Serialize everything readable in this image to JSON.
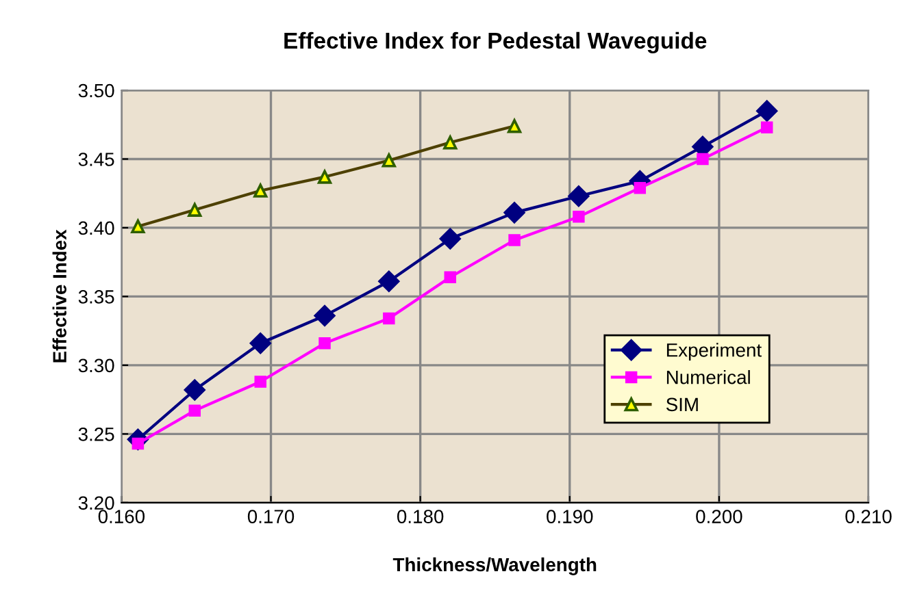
{
  "chart_data": {
    "type": "line",
    "title": "Effective Index for Pedestal Waveguide",
    "xlabel": "Thickness/Wavelength",
    "ylabel": "Effective Index",
    "xlim": [
      0.16,
      0.21
    ],
    "xticks": [
      {
        "value": 0.16,
        "label": "0.160"
      },
      {
        "value": 0.17,
        "label": "0.170"
      },
      {
        "value": 0.18,
        "label": "0.180"
      },
      {
        "value": 0.19,
        "label": "0.190"
      },
      {
        "value": 0.2,
        "label": "0.200"
      },
      {
        "value": 0.21,
        "label": "0.210"
      }
    ],
    "ylim": [
      3.2,
      3.5
    ],
    "yticks": [
      {
        "value": 3.2,
        "label": "3.20"
      },
      {
        "value": 3.25,
        "label": "3.25"
      },
      {
        "value": 3.3,
        "label": "3.30"
      },
      {
        "value": 3.35,
        "label": "3.35"
      },
      {
        "value": 3.4,
        "label": "3.40"
      },
      {
        "value": 3.45,
        "label": "3.45"
      },
      {
        "value": 3.5,
        "label": "3.50"
      }
    ],
    "grid": true,
    "legend": "center right",
    "series": [
      {
        "name": "Experiment",
        "color": "#000080",
        "marker": "diamond",
        "x": [
          0.1611,
          0.1649,
          0.1693,
          0.1736,
          0.1779,
          0.182,
          0.1863,
          0.1906,
          0.1947,
          0.1989,
          0.2032
        ],
        "values": [
          3.246,
          3.282,
          3.316,
          3.336,
          3.361,
          3.392,
          3.411,
          3.423,
          3.434,
          3.459,
          3.485
        ]
      },
      {
        "name": "Numerical",
        "color": "#ff00ff",
        "marker": "square",
        "x": [
          0.1611,
          0.1649,
          0.1693,
          0.1736,
          0.1779,
          0.182,
          0.1863,
          0.1906,
          0.1947,
          0.1989,
          0.2032
        ],
        "values": [
          3.243,
          3.267,
          3.288,
          3.316,
          3.334,
          3.364,
          3.391,
          3.408,
          3.429,
          3.45,
          3.473
        ]
      },
      {
        "name": "SIM",
        "color": "#4d4000",
        "marker": "triangle",
        "x": [
          0.1611,
          0.1649,
          0.1693,
          0.1736,
          0.1779,
          0.182,
          0.1863
        ],
        "values": [
          3.401,
          3.413,
          3.427,
          3.437,
          3.449,
          3.462,
          3.474
        ]
      }
    ]
  }
}
